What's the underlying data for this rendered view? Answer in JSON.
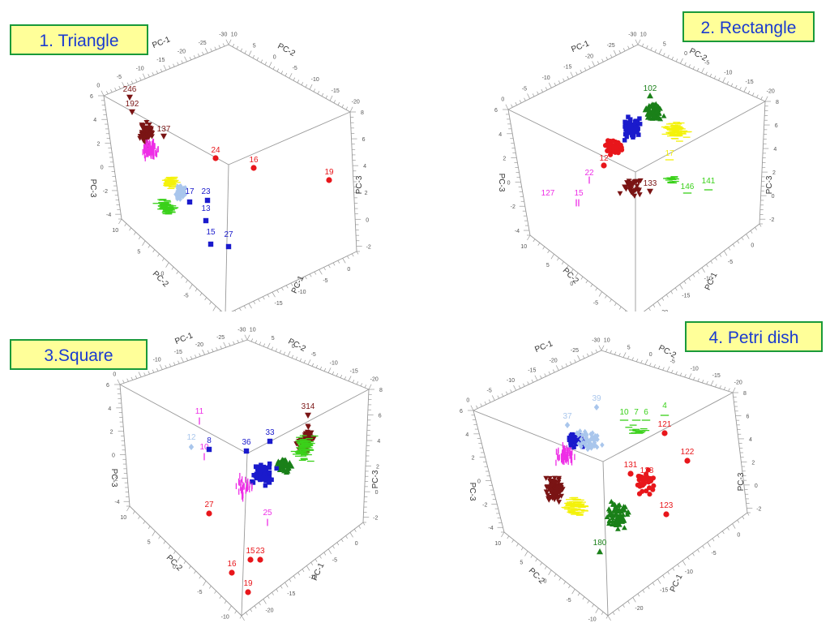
{
  "page": {
    "colors": {
      "red": "#e8161b",
      "blue": "#1a1acc",
      "light_blue": "#a9c6ec",
      "magenta": "#ee2ee6",
      "dark_red": "#7a1414",
      "yellow": "#f4f20a",
      "green": "#3ad11a",
      "dark_green": "#1a8019",
      "axis": "#999999",
      "title_border": "#1a9a3a",
      "title_bg": "#ffff99",
      "title_text": "#1a3ad0"
    }
  },
  "chart_data": [
    {
      "type": "scatter",
      "title": "1. Triangle",
      "axes": {
        "labels": [
          "PC-1",
          "PC-2",
          "PC-3",
          "PC-1",
          "PC-2",
          "PC-3"
        ]
      },
      "clusters": [
        {
          "color": "dark_red",
          "marker": "triangle-down"
        },
        {
          "color": "magenta",
          "marker": "bar"
        },
        {
          "color": "yellow",
          "marker": "dash"
        },
        {
          "color": "green",
          "marker": "dash"
        },
        {
          "color": "light_blue",
          "marker": "diamond"
        }
      ],
      "labeled_points": [
        {
          "label": "246",
          "color": "dark_red",
          "marker": "triangle-down"
        },
        {
          "label": "192",
          "color": "dark_red",
          "marker": "triangle-down"
        },
        {
          "label": "137",
          "color": "dark_red",
          "marker": "triangle-down"
        },
        {
          "label": "24",
          "color": "red",
          "marker": "circle"
        },
        {
          "label": "16",
          "color": "red",
          "marker": "circle"
        },
        {
          "label": "19",
          "color": "red",
          "marker": "circle"
        },
        {
          "label": "23",
          "color": "blue",
          "marker": "square"
        },
        {
          "label": "17",
          "color": "blue",
          "marker": "square"
        },
        {
          "label": "13",
          "color": "blue",
          "marker": "square"
        },
        {
          "label": "15",
          "color": "blue",
          "marker": "square"
        },
        {
          "label": "27",
          "color": "blue",
          "marker": "square"
        }
      ]
    },
    {
      "type": "scatter",
      "title": "2. Rectangle",
      "axes": {
        "labels": [
          "PC-1",
          "PC-2",
          "PC-3",
          "PC-1",
          "PC-2",
          "PC-3"
        ]
      },
      "clusters": [
        {
          "color": "dark_green",
          "marker": "triangle"
        },
        {
          "color": "blue",
          "marker": "square"
        },
        {
          "color": "yellow",
          "marker": "dash"
        },
        {
          "color": "red",
          "marker": "circle"
        },
        {
          "color": "dark_red",
          "marker": "triangle-down"
        }
      ],
      "labeled_points": [
        {
          "label": "102",
          "color": "dark_green",
          "marker": "triangle"
        },
        {
          "label": "127",
          "color": "magenta",
          "marker": "bar"
        },
        {
          "label": "15",
          "color": "magenta",
          "marker": "bar"
        },
        {
          "label": "22",
          "color": "magenta",
          "marker": "bar"
        },
        {
          "label": "12",
          "color": "red",
          "marker": "circle"
        },
        {
          "label": "133",
          "color": "dark_red",
          "marker": "triangle-down"
        },
        {
          "label": "141",
          "color": "green",
          "marker": "dash"
        },
        {
          "label": "146",
          "color": "green",
          "marker": "dash"
        },
        {
          "label": "17",
          "color": "yellow",
          "marker": "dash"
        }
      ]
    },
    {
      "type": "scatter",
      "title": "3.Square",
      "axes": {
        "labels": [
          "PC-1",
          "PC-2",
          "PC-3",
          "PC-1",
          "PC-2",
          "PC-3"
        ]
      },
      "clusters": [
        {
          "color": "dark_red",
          "marker": "triangle-down"
        },
        {
          "color": "green",
          "marker": "dash"
        },
        {
          "color": "dark_green",
          "marker": "triangle"
        },
        {
          "color": "blue",
          "marker": "square"
        },
        {
          "color": "magenta",
          "marker": "bar"
        }
      ],
      "labeled_points": [
        {
          "label": "314",
          "color": "dark_red",
          "marker": "triangle-down"
        },
        {
          "label": "11",
          "color": "magenta",
          "marker": "bar"
        },
        {
          "label": "12",
          "color": "light_blue",
          "marker": "diamond"
        },
        {
          "label": "10",
          "color": "magenta",
          "marker": "bar"
        },
        {
          "label": "8",
          "color": "blue",
          "marker": "square"
        },
        {
          "label": "36",
          "color": "blue",
          "marker": "square"
        },
        {
          "label": "33",
          "color": "blue",
          "marker": "square"
        },
        {
          "label": "27",
          "color": "red",
          "marker": "circle"
        },
        {
          "label": "25",
          "color": "magenta",
          "marker": "bar"
        },
        {
          "label": "15",
          "color": "red",
          "marker": "circle"
        },
        {
          "label": "23",
          "color": "red",
          "marker": "circle"
        },
        {
          "label": "16",
          "color": "red",
          "marker": "circle"
        },
        {
          "label": "19",
          "color": "red",
          "marker": "circle"
        }
      ]
    },
    {
      "type": "scatter",
      "title": "4. Petri dish",
      "axes": {
        "labels": [
          "PC-1",
          "PC-2",
          "PC-3",
          "PC-1",
          "PC-2",
          "PC-3"
        ]
      },
      "clusters": [
        {
          "color": "light_blue",
          "marker": "diamond"
        },
        {
          "color": "blue",
          "marker": "square"
        },
        {
          "color": "magenta",
          "marker": "bar"
        },
        {
          "color": "dark_red",
          "marker": "triangle-down"
        },
        {
          "color": "yellow",
          "marker": "dash"
        },
        {
          "color": "dark_green",
          "marker": "triangle"
        },
        {
          "color": "red",
          "marker": "circle"
        }
      ],
      "labeled_points": [
        {
          "label": "39",
          "color": "light_blue",
          "marker": "diamond"
        },
        {
          "label": "37",
          "color": "light_blue",
          "marker": "diamond"
        },
        {
          "label": "10",
          "color": "green",
          "marker": "dash"
        },
        {
          "label": "7",
          "color": "green",
          "marker": "dash"
        },
        {
          "label": "6",
          "color": "green",
          "marker": "dash"
        },
        {
          "label": "4",
          "color": "green",
          "marker": "dash"
        },
        {
          "label": "121",
          "color": "red",
          "marker": "circle"
        },
        {
          "label": "122",
          "color": "red",
          "marker": "circle"
        },
        {
          "label": "128",
          "color": "red",
          "marker": "circle"
        },
        {
          "label": "131",
          "color": "red",
          "marker": "circle"
        },
        {
          "label": "123",
          "color": "red",
          "marker": "circle"
        },
        {
          "label": "180",
          "color": "dark_green",
          "marker": "triangle"
        }
      ]
    }
  ]
}
